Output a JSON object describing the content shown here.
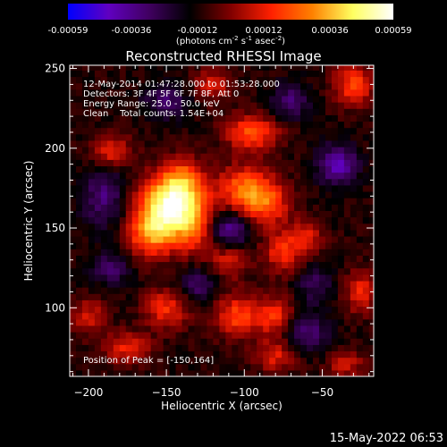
{
  "chart_data": {
    "type": "heatmap",
    "title": "Reconstructed RHESSI Image",
    "xlabel": "Heliocentric X (arcsec)",
    "ylabel": "Heliocentric Y (arcsec)",
    "xlim": [
      -212,
      -17
    ],
    "ylim": [
      57,
      252
    ],
    "xticks": [
      -200,
      -150,
      -100,
      -50
    ],
    "yticks": [
      100,
      150,
      200,
      250
    ],
    "grid": false,
    "colorbar": {
      "min": -0.00059,
      "max": 0.00059,
      "tick_values": [
        -0.00059,
        -0.00036,
        -0.00012,
        0.00012,
        0.00036,
        0.00059
      ],
      "tick_labels": [
        "-0.00059",
        "-0.00036",
        "-0.00012",
        "0.00012",
        "0.00036",
        "0.00059"
      ],
      "unit_label": "(photons cm",
      "unit_sup1": "-2",
      "unit_mid": " s",
      "unit_sup2": "-1",
      "unit_mid2": " asec",
      "unit_sup3": "-2",
      "unit_end": ")",
      "colors": [
        "#0000ff",
        "#6000c0",
        "#400060",
        "#000000",
        "#800000",
        "#ff2000",
        "#ff8000",
        "#ffff60",
        "#ffffff"
      ]
    },
    "annotations": [
      "12-May-2014 01:47:28.000 to 01:53:28.000",
      "Detectors: 3F 4F 5F 6F 7F 8F, Att 0",
      "Energy Range: 25.0 - 50.0 keV",
      "Clean    Total counts: 1.54E+04"
    ],
    "peak_label": "Position of Peak = [-150,164]",
    "peak_position": [
      -150,
      164
    ],
    "blobs": [
      {
        "x": -148,
        "y": 163,
        "sx": 14,
        "sy": 13,
        "amp": 0.00062
      },
      {
        "x": -140,
        "y": 180,
        "sx": 10,
        "sy": 10,
        "amp": 0.0003
      },
      {
        "x": -160,
        "y": 145,
        "sx": 12,
        "sy": 10,
        "amp": 0.0003
      },
      {
        "x": -130,
        "y": 150,
        "sx": 9,
        "sy": 12,
        "amp": 0.00022
      },
      {
        "x": -185,
        "y": 198,
        "sx": 9,
        "sy": 7,
        "amp": 0.00026
      },
      {
        "x": -100,
        "y": 175,
        "sx": 12,
        "sy": 10,
        "amp": 0.00035
      },
      {
        "x": -85,
        "y": 165,
        "sx": 10,
        "sy": 10,
        "amp": 0.00028
      },
      {
        "x": -95,
        "y": 210,
        "sx": 12,
        "sy": 8,
        "amp": 0.00032
      },
      {
        "x": -110,
        "y": 130,
        "sx": 8,
        "sy": 9,
        "amp": 0.00022
      },
      {
        "x": -75,
        "y": 135,
        "sx": 9,
        "sy": 9,
        "amp": 0.00026
      },
      {
        "x": -60,
        "y": 145,
        "sx": 7,
        "sy": 7,
        "amp": 0.00022
      },
      {
        "x": -105,
        "y": 95,
        "sx": 10,
        "sy": 9,
        "amp": 0.0003
      },
      {
        "x": -80,
        "y": 95,
        "sx": 9,
        "sy": 9,
        "amp": 0.00026
      },
      {
        "x": -80,
        "y": 70,
        "sx": 10,
        "sy": 7,
        "amp": 0.00022
      },
      {
        "x": -150,
        "y": 100,
        "sx": 10,
        "sy": 9,
        "amp": 0.00026
      },
      {
        "x": -175,
        "y": 75,
        "sx": 10,
        "sy": 7,
        "amp": 0.00024
      },
      {
        "x": -200,
        "y": 95,
        "sx": 8,
        "sy": 8,
        "amp": 0.0002
      },
      {
        "x": -30,
        "y": 240,
        "sx": 9,
        "sy": 9,
        "amp": 0.0003
      },
      {
        "x": -25,
        "y": 110,
        "sx": 7,
        "sy": 9,
        "amp": 0.00026
      },
      {
        "x": -35,
        "y": 65,
        "sx": 8,
        "sy": 6,
        "amp": 0.0002
      },
      {
        "x": -120,
        "y": 240,
        "sx": 9,
        "sy": 7,
        "amp": 0.0002
      },
      {
        "x": -40,
        "y": 190,
        "sx": 9,
        "sy": 9,
        "amp": -0.0003
      },
      {
        "x": -110,
        "y": 148,
        "sx": 9,
        "sy": 8,
        "amp": -0.0003
      },
      {
        "x": -190,
        "y": 170,
        "sx": 10,
        "sy": 14,
        "amp": -0.00022
      },
      {
        "x": -130,
        "y": 115,
        "sx": 9,
        "sy": 7,
        "amp": -0.0002
      },
      {
        "x": -60,
        "y": 85,
        "sx": 10,
        "sy": 9,
        "amp": -0.00022
      },
      {
        "x": -185,
        "y": 125,
        "sx": 9,
        "sy": 8,
        "amp": -0.00018
      },
      {
        "x": -150,
        "y": 230,
        "sx": 10,
        "sy": 8,
        "amp": -0.00018
      },
      {
        "x": -70,
        "y": 230,
        "sx": 9,
        "sy": 8,
        "amp": -0.0002
      },
      {
        "x": -55,
        "y": 115,
        "sx": 8,
        "sy": 8,
        "amp": -0.00016
      }
    ],
    "background": -0.00011
  },
  "footer": {
    "timestamp": "15-May-2022 06:53"
  }
}
